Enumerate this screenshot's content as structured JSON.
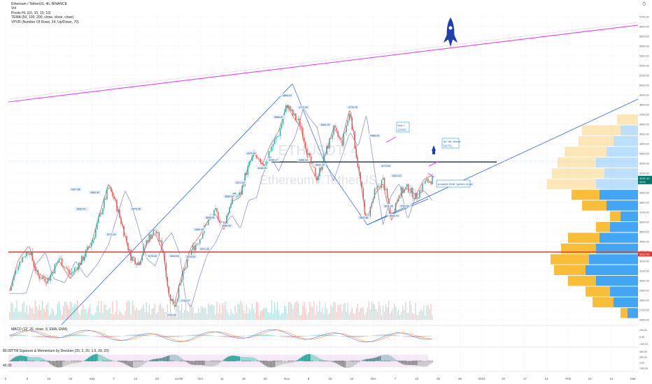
{
  "legend": {
    "symbol": "Ethereum / TetherUS, 4h, BINANCE",
    "vol": "Vol",
    "pivots": "Pivots HL (10, 10, 10, 10)",
    "tema": "TEMA (50, 100, 200, close, close, close)",
    "vpvr": "VPVR (Number Of Rows, 24, Up/Down, 70)"
  },
  "watermark": {
    "line1": "ETHUSDT, 4",
    "line2": "Ethereum / TetherUS"
  },
  "macd_label": "MACD (12, 26, close, 9, EMA, EMA)",
  "sqz_label": "TTM Squeeze & Momentum by Drecken (20, 2, 20, 1.5, 20, 20)",
  "sqz_sub": "40.00",
  "macd_sub": "80.00",
  "annotations": {
    "box1_a": "first ?",
    "box1_b": "(4320)",
    "box2_a": "an \"alt. above",
    "box2_b": "(4170)",
    "box3": "possible EMA \"golden cross\""
  },
  "colors": {
    "up": "#26a69a",
    "down": "#ef5350",
    "magenta": "#e040fb",
    "trend": "#2962ff",
    "support": "#e53935",
    "resistance": "#0d1b3e",
    "vp_up": "#2196f3",
    "vp_down": "#f9b115"
  },
  "chart_data": {
    "type": "line",
    "title": "Ethereum / TetherUS, 4h, BINANCE",
    "x_ticks": [
      "2",
      "9",
      "16",
      "23",
      "Sep",
      "7",
      "14",
      "20",
      "12:00",
      "Oct",
      "11",
      "18",
      "25",
      "Nov",
      "8",
      "15",
      "22",
      "Dec",
      "7",
      "13",
      "20",
      "26",
      "2022",
      "10",
      "17",
      "24",
      "Feb",
      "14",
      "21",
      "Mar"
    ],
    "y_ticks": [
      "5700.00",
      "5600.00",
      "5500.00",
      "5400.00",
      "5300.00",
      "5200.00",
      "5100.00",
      "5000.00",
      "4900.00",
      "4800.00",
      "4700.00",
      "4600.00",
      "4500.00",
      "4400.00",
      "4300.00",
      "4200.00",
      "4100.00",
      "4000.00",
      "3900.00",
      "3800.00",
      "3700.00",
      "3600.00",
      "3500.00",
      "3400.00",
      "3300.00",
      "3200.00",
      "3100.00",
      "3000.00",
      "2900.00",
      "2800.00",
      "2700.00",
      "2600.00"
    ],
    "ylim": [
      2560,
      5760
    ],
    "price_tag": "4037.42",
    "price_tag_sub": "05:00",
    "support_tag": "3262.56",
    "macd_ticks": [
      "100.00",
      "0.00",
      "-100.00"
    ],
    "sqz_ticks": [
      "400.00",
      "200.00",
      "0.00",
      "-200.00"
    ],
    "price_series": [
      {
        "x": 0,
        "y": 2900
      },
      {
        "x": 3,
        "y": 3180
      },
      {
        "x": 7,
        "y": 3320
      },
      {
        "x": 10,
        "y": 3050
      },
      {
        "x": 14,
        "y": 3010
      },
      {
        "x": 18,
        "y": 3230
      },
      {
        "x": 22,
        "y": 3060
      },
      {
        "x": 26,
        "y": 3200
      },
      {
        "x": 30,
        "y": 3400
      },
      {
        "x": 33,
        "y": 3680
      },
      {
        "x": 36,
        "y": 3950
      },
      {
        "x": 38,
        "y": 3840
      },
      {
        "x": 41,
        "y": 3560
      },
      {
        "x": 44,
        "y": 3250
      },
      {
        "x": 47,
        "y": 3180
      },
      {
        "x": 50,
        "y": 3420
      },
      {
        "x": 53,
        "y": 3520
      },
      {
        "x": 56,
        "y": 3300
      },
      {
        "x": 58,
        "y": 2850
      },
      {
        "x": 60,
        "y": 2750
      },
      {
        "x": 63,
        "y": 3050
      },
      {
        "x": 66,
        "y": 3300
      },
      {
        "x": 69,
        "y": 3420
      },
      {
        "x": 72,
        "y": 3600
      },
      {
        "x": 75,
        "y": 3700
      },
      {
        "x": 78,
        "y": 3560
      },
      {
        "x": 81,
        "y": 3850
      },
      {
        "x": 84,
        "y": 3880
      },
      {
        "x": 86,
        "y": 4100
      },
      {
        "x": 89,
        "y": 4300
      },
      {
        "x": 92,
        "y": 4150
      },
      {
        "x": 95,
        "y": 4350
      },
      {
        "x": 98,
        "y": 4500
      },
      {
        "x": 101,
        "y": 4800
      },
      {
        "x": 103,
        "y": 4700
      },
      {
        "x": 106,
        "y": 4600
      },
      {
        "x": 109,
        "y": 4250
      },
      {
        "x": 112,
        "y": 4050
      },
      {
        "x": 115,
        "y": 4300
      },
      {
        "x": 118,
        "y": 4550
      },
      {
        "x": 121,
        "y": 4400
      },
      {
        "x": 124,
        "y": 4730
      },
      {
        "x": 127,
        "y": 4150
      },
      {
        "x": 130,
        "y": 3600
      },
      {
        "x": 133,
        "y": 3900
      },
      {
        "x": 136,
        "y": 4030
      },
      {
        "x": 139,
        "y": 3650
      },
      {
        "x": 142,
        "y": 3900
      },
      {
        "x": 145,
        "y": 3950
      },
      {
        "x": 148,
        "y": 3850
      },
      {
        "x": 151,
        "y": 4000
      },
      {
        "x": 154,
        "y": 4037
      }
    ],
    "labels": [
      {
        "x": 24,
        "y": 3930,
        "t": "4027.88"
      },
      {
        "x": 31,
        "y": 3900,
        "t": "3960.00"
      },
      {
        "x": 26,
        "y": 3730,
        "t": "3830.00"
      },
      {
        "x": 46,
        "y": 3730,
        "t": "3676.28"
      },
      {
        "x": 37,
        "y": 3470,
        "t": "3474.16"
      },
      {
        "x": 52,
        "y": 3250,
        "t": "3174.00"
      },
      {
        "x": 60,
        "y": 3250,
        "t": "3164.94"
      },
      {
        "x": 59,
        "y": 2645,
        "t": "2720.00"
      },
      {
        "x": 64,
        "y": 2790,
        "t": "2730.27"
      },
      {
        "x": 66,
        "y": 3240,
        "t": "3270.00"
      },
      {
        "x": 71,
        "y": 3320,
        "t": "3371.00"
      },
      {
        "x": 69,
        "y": 3520,
        "t": "3489.00"
      },
      {
        "x": 73,
        "y": 3640,
        "t": "3695.00"
      },
      {
        "x": 79,
        "y": 3560,
        "t": "3640.00"
      },
      {
        "x": 80,
        "y": 3860,
        "t": "3888.00"
      },
      {
        "x": 84,
        "y": 4000,
        "t": "3971.00"
      },
      {
        "x": 88,
        "y": 4300,
        "t": "4375.00"
      },
      {
        "x": 92,
        "y": 4150,
        "t": "4146.00"
      },
      {
        "x": 96,
        "y": 4230,
        "t": "4226.17"
      },
      {
        "x": 101,
        "y": 4890,
        "t": "4868.00"
      },
      {
        "x": 98,
        "y": 4670,
        "t": "4665.87"
      },
      {
        "x": 107,
        "y": 4770,
        "t": "4772.00"
      },
      {
        "x": 107,
        "y": 4230,
        "t": "3966.44"
      },
      {
        "x": 113,
        "y": 4180,
        "t": "4021.74"
      },
      {
        "x": 115,
        "y": 4590,
        "t": "4551.00"
      },
      {
        "x": 125,
        "y": 4770,
        "t": "4778.75"
      },
      {
        "x": 129,
        "y": 3640,
        "t": "3503.48"
      },
      {
        "x": 133,
        "y": 4480,
        "t": "4488.00"
      },
      {
        "x": 137,
        "y": 4170,
        "t": "4173.00"
      },
      {
        "x": 141,
        "y": 4070,
        "t": "4022.43"
      },
      {
        "x": 138,
        "y": 3760,
        "t": "3631.00"
      },
      {
        "x": 144,
        "y": 3760,
        "t": "3751.00"
      },
      {
        "x": 140,
        "y": 3660,
        "t": "3643.73"
      }
    ]
  }
}
